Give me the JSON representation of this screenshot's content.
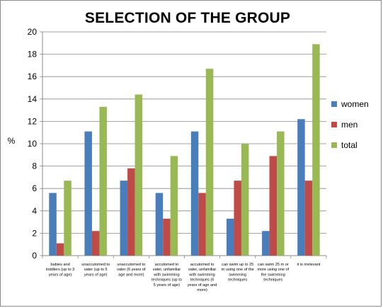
{
  "chart_data": {
    "type": "bar",
    "title": "SELECTION OF THE GROUP",
    "xlabel": "",
    "ylabel": "%",
    "ylim": [
      0,
      20
    ],
    "ytick_step": 2,
    "grid": "horizontal",
    "legend_position": "right",
    "categories": [
      "babies and toddlers (up to 3 years of age)",
      "unaccutomed to vater (up to 5 years of age)",
      "unaccutomed to vater (6 years of age and more)",
      "accutomed to vater, unfamiliar with swimming techniques (up to 5 years of age)",
      "accutomed to vater, unfamiliar with swimming techniques (6 years of age and more)",
      "can swim up to 25 m using one of the swimming techniques",
      "can swim 25 m or more using one of the swimming techniques",
      "it is irrelevant"
    ],
    "category_lines": [
      [
        "babies and",
        "toddlers (up to 3",
        "years of age)"
      ],
      [
        "unaccutomed to",
        "vater (up to 5",
        "years of age)"
      ],
      [
        "unaccutomed to",
        "vater (6 years of",
        "age and more)"
      ],
      [
        "accutomed to",
        "vater, unfamiliar",
        "with swimming",
        "techniques (up to",
        "5 years of age)"
      ],
      [
        "accutomed to",
        "vater, unfamiliar",
        "with swimming",
        "techniques (6",
        "years of age and",
        "more)"
      ],
      [
        "can swim up to 25",
        "m using one of the",
        "swimming",
        "techniques"
      ],
      [
        "can swim 25 m or",
        "more using one of",
        "the swimming",
        "techniques"
      ],
      [
        "it is irrelevant"
      ]
    ],
    "series": [
      {
        "name": "women",
        "color": "#4a7ebb",
        "values": [
          5.6,
          11.1,
          6.7,
          5.6,
          11.1,
          3.3,
          2.2,
          12.2
        ]
      },
      {
        "name": "men",
        "color": "#be4b48",
        "values": [
          1.1,
          2.2,
          7.8,
          3.3,
          5.6,
          6.7,
          8.9,
          6.7
        ]
      },
      {
        "name": "total",
        "color": "#98b954",
        "values": [
          6.7,
          13.3,
          14.4,
          8.9,
          16.7,
          10.0,
          11.1,
          18.9
        ]
      }
    ]
  }
}
